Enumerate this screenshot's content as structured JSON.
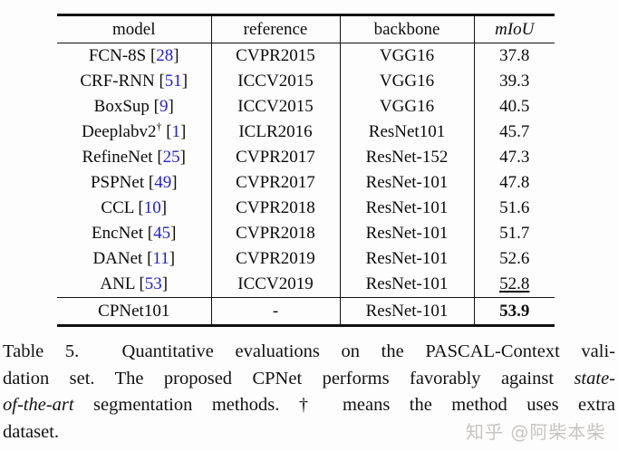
{
  "table": {
    "columns": [
      {
        "label": "model"
      },
      {
        "label": "reference"
      },
      {
        "label": "backbone"
      },
      {
        "label": "mIoU"
      }
    ],
    "rows": [
      {
        "model": "FCN-8S",
        "cite": "28",
        "reference": "CVPR2015",
        "backbone": "VGG16",
        "miou": "37.8"
      },
      {
        "model": "CRF-RNN",
        "cite": "51",
        "reference": "ICCV2015",
        "backbone": "VGG16",
        "miou": "39.3"
      },
      {
        "model": "BoxSup",
        "cite": "9",
        "reference": "ICCV2015",
        "backbone": "VGG16",
        "miou": "40.5"
      },
      {
        "model": "Deeplabv2",
        "dagger": true,
        "cite": "1",
        "reference": "ICLR2016",
        "backbone": "ResNet101",
        "miou": "45.7"
      },
      {
        "model": "RefineNet",
        "cite": "25",
        "reference": "CVPR2017",
        "backbone": "ResNet-152",
        "miou": "47.3"
      },
      {
        "model": "PSPNet",
        "cite": "49",
        "reference": "CVPR2017",
        "backbone": "ResNet-101",
        "miou": "47.8"
      },
      {
        "model": "CCL",
        "cite": "10",
        "reference": "CVPR2018",
        "backbone": "ResNet-101",
        "miou": "51.6"
      },
      {
        "model": "EncNet",
        "cite": "45",
        "reference": "CVPR2018",
        "backbone": "ResNet-101",
        "miou": "51.7"
      },
      {
        "model": "DANet",
        "cite": "11",
        "reference": "CVPR2019",
        "backbone": "ResNet-101",
        "miou": "52.6"
      },
      {
        "model": "ANL",
        "cite": "53",
        "reference": "ICCV2019",
        "backbone": "ResNet-101",
        "miou": "52.8",
        "miou_underline": true
      },
      {
        "model": "CPNet101",
        "reference": "-",
        "backbone": "ResNet-101",
        "miou": "53.9",
        "miou_bold": true,
        "final": true
      }
    ]
  },
  "caption": {
    "lines": [
      [
        {
          "t": "Table 5.  Quantitative evaluations on the PASCAL-Context vali-"
        }
      ],
      [
        {
          "t": "dation set. The proposed CPNet performs favorably against "
        },
        {
          "t": "state-",
          "i": true
        }
      ],
      [
        {
          "t": "of-the-art",
          "i": true
        },
        {
          "t": " segmentation methods. † means the method uses extra"
        }
      ],
      [
        {
          "t": "dataset."
        }
      ]
    ]
  },
  "watermark": {
    "text": "知乎 @阿柴本柴"
  },
  "colors": {
    "citation_blue": "#2222cc",
    "rule_black": "#111111",
    "watermark_gray": "#c7c4c1"
  }
}
